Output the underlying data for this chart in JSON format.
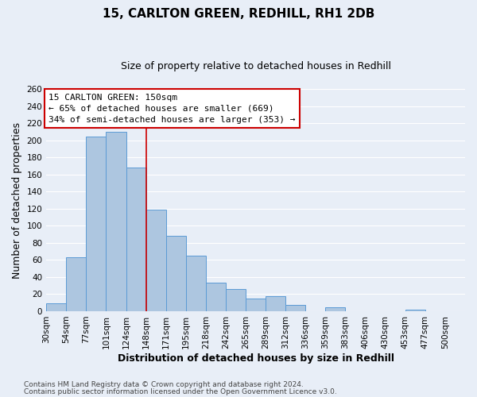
{
  "title": "15, CARLTON GREEN, REDHILL, RH1 2DB",
  "subtitle": "Size of property relative to detached houses in Redhill",
  "xlabel": "Distribution of detached houses by size in Redhill",
  "ylabel": "Number of detached properties",
  "bin_labels": [
    "30sqm",
    "54sqm",
    "77sqm",
    "101sqm",
    "124sqm",
    "148sqm",
    "171sqm",
    "195sqm",
    "218sqm",
    "242sqm",
    "265sqm",
    "289sqm",
    "312sqm",
    "336sqm",
    "359sqm",
    "383sqm",
    "406sqm",
    "430sqm",
    "453sqm",
    "477sqm",
    "500sqm"
  ],
  "bar_values": [
    9,
    63,
    205,
    210,
    168,
    119,
    88,
    65,
    33,
    26,
    15,
    18,
    7,
    0,
    5,
    0,
    0,
    0,
    2,
    0,
    0
  ],
  "bar_color": "#adc6e0",
  "bar_edge_color": "#5b9bd5",
  "vline_x": 5,
  "vline_color": "#cc0000",
  "annotation_title": "15 CARLTON GREEN: 150sqm",
  "annotation_line1": "← 65% of detached houses are smaller (669)",
  "annotation_line2": "34% of semi-detached houses are larger (353) →",
  "annotation_box_color": "#cc0000",
  "ylim": [
    0,
    260
  ],
  "yticks": [
    0,
    20,
    40,
    60,
    80,
    100,
    120,
    140,
    160,
    180,
    200,
    220,
    240,
    260
  ],
  "footnote1": "Contains HM Land Registry data © Crown copyright and database right 2024.",
  "footnote2": "Contains public sector information licensed under the Open Government Licence v3.0.",
  "background_color": "#e8eef7",
  "grid_color": "#ffffff",
  "title_fontsize": 11,
  "subtitle_fontsize": 9,
  "axis_label_fontsize": 9,
  "tick_fontsize": 7.5,
  "annotation_fontsize": 8,
  "footnote_fontsize": 6.5
}
